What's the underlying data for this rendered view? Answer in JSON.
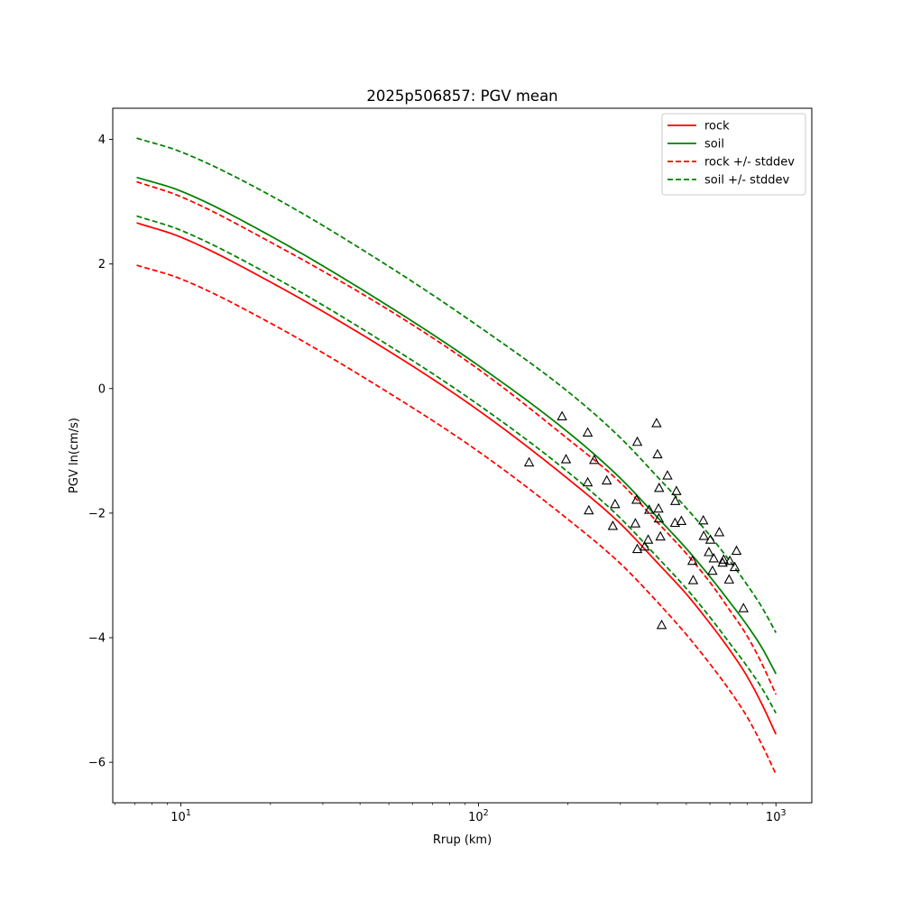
{
  "chart_data": {
    "type": "line",
    "title": "2025p506857: PGV mean",
    "xlabel": "Rrup (km)",
    "ylabel": "PGV ln(cm/s)",
    "xscale": "log",
    "xlim": [
      5.9,
      1320
    ],
    "ylim": [
      -6.65,
      4.5
    ],
    "x_ticks": [
      {
        "value": 10,
        "base": "10",
        "exp": "1"
      },
      {
        "value": 100,
        "base": "10",
        "exp": "2"
      },
      {
        "value": 1000,
        "base": "10",
        "exp": "3"
      }
    ],
    "y_ticks": [
      {
        "value": 4,
        "label": "4"
      },
      {
        "value": 2,
        "label": "2"
      },
      {
        "value": 0,
        "label": "0"
      },
      {
        "value": -2,
        "label": "−2"
      },
      {
        "value": -4,
        "label": "−4"
      },
      {
        "value": -6,
        "label": "−6"
      }
    ],
    "grid": false,
    "legend_position": "upper-right",
    "series": [
      {
        "name": "rock",
        "color": "#ff0000",
        "style": "solid",
        "x": [
          7.1,
          10,
          20,
          50,
          100,
          200,
          300,
          400,
          500,
          600,
          700,
          800,
          900,
          1000
        ],
        "y": [
          2.66,
          2.43,
          1.71,
          0.6,
          -0.35,
          -1.45,
          -2.17,
          -2.8,
          -3.3,
          -3.77,
          -4.2,
          -4.62,
          -5.08,
          -5.55
        ]
      },
      {
        "name": "soil",
        "color": "#008000",
        "style": "solid",
        "x": [
          7.1,
          10,
          20,
          50,
          100,
          200,
          300,
          400,
          500,
          600,
          700,
          800,
          900,
          1000
        ],
        "y": [
          3.39,
          3.17,
          2.45,
          1.32,
          0.37,
          -0.7,
          -1.44,
          -2.07,
          -2.57,
          -3.02,
          -3.43,
          -3.8,
          -4.17,
          -4.58
        ]
      },
      {
        "name": "rock +/- stddev",
        "color": "#ff0000",
        "style": "dashed",
        "x": [
          7.1,
          10,
          20,
          50,
          100,
          200,
          300,
          400,
          500,
          600,
          700,
          800,
          900,
          1000
        ],
        "y": [
          3.32,
          3.08,
          2.35,
          1.26,
          0.31,
          -0.81,
          -1.51,
          -2.15,
          -2.65,
          -3.11,
          -3.56,
          -3.97,
          -4.43,
          -4.91
        ]
      },
      {
        "name": "",
        "color": "#ff0000",
        "style": "dashed",
        "x": [
          7.1,
          10,
          20,
          50,
          100,
          200,
          300,
          400,
          500,
          600,
          700,
          800,
          900,
          1000
        ],
        "y": [
          1.98,
          1.76,
          1.05,
          -0.07,
          -1.01,
          -2.1,
          -2.81,
          -3.43,
          -3.95,
          -4.42,
          -4.85,
          -5.27,
          -5.73,
          -6.19
        ]
      },
      {
        "name": "soil +/- stddev",
        "color": "#008000",
        "style": "dashed",
        "x": [
          7.1,
          10,
          20,
          50,
          100,
          200,
          300,
          400,
          500,
          600,
          700,
          800,
          900,
          1000
        ],
        "y": [
          4.02,
          3.8,
          3.1,
          1.96,
          1.0,
          -0.05,
          -0.79,
          -1.42,
          -1.92,
          -2.36,
          -2.77,
          -3.15,
          -3.52,
          -3.92
        ]
      },
      {
        "name": "",
        "color": "#008000",
        "style": "dashed",
        "x": [
          7.1,
          10,
          20,
          50,
          100,
          200,
          300,
          400,
          500,
          600,
          700,
          800,
          900,
          1000
        ],
        "y": [
          2.77,
          2.54,
          1.82,
          0.69,
          -0.26,
          -1.34,
          -2.08,
          -2.71,
          -3.21,
          -3.67,
          -4.09,
          -4.46,
          -4.82,
          -5.21
        ]
      }
    ],
    "observations": {
      "marker": "triangle",
      "color": "#000000",
      "x": [
        148,
        191,
        197,
        233,
        233,
        235,
        245,
        270,
        283,
        288,
        337,
        340,
        342,
        342,
        362,
        372,
        375,
        397,
        400,
        403,
        404,
        405,
        409,
        413,
        432,
        458,
        459,
        463,
        481,
        524,
        527,
        570,
        572,
        595,
        602,
        612,
        618,
        645,
        662,
        667,
        696,
        700,
        727,
        737,
        778
      ],
      "y": [
        -1.19,
        -0.45,
        -1.14,
        -0.71,
        -1.51,
        -1.96,
        -1.15,
        -1.48,
        -2.21,
        -1.86,
        -2.17,
        -1.79,
        -0.86,
        -2.58,
        -2.54,
        -2.43,
        -1.95,
        -0.56,
        -1.06,
        -1.93,
        -2.09,
        -1.6,
        -2.38,
        -3.8,
        -1.4,
        -2.16,
        -1.81,
        -1.65,
        -2.13,
        -2.77,
        -3.08,
        -2.12,
        -2.37,
        -2.63,
        -2.43,
        -2.93,
        -2.73,
        -2.31,
        -2.8,
        -2.75,
        -3.07,
        -2.77,
        -2.87,
        -2.61,
        -3.53
      ]
    }
  }
}
